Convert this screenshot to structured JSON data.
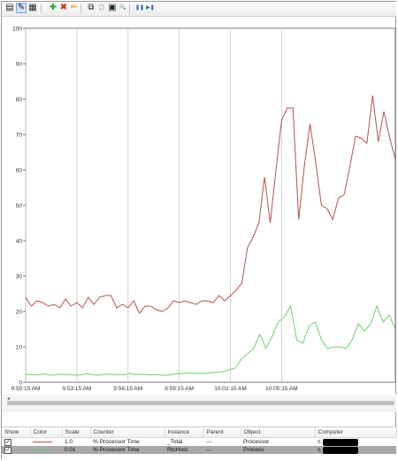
{
  "toolbar": {
    "buttons": [
      {
        "name": "view-graph-icon",
        "glyph": "▤"
      },
      {
        "name": "highlight-icon",
        "glyph": "✎",
        "pressed": true
      },
      {
        "name": "change-graph-type-icon",
        "glyph": "▦"
      },
      {
        "name": "add-counter-icon",
        "glyph": "✚",
        "color": "#2ca02c"
      },
      {
        "name": "delete-counter-icon",
        "glyph": "✖",
        "color": "#d62728"
      },
      {
        "name": "highlight-pen-icon",
        "glyph": "✏",
        "color": "#c9a400"
      },
      {
        "name": "copy-icon",
        "glyph": "⧉"
      },
      {
        "name": "paste-icon",
        "glyph": "📋"
      },
      {
        "name": "properties-icon",
        "glyph": "▣"
      },
      {
        "name": "zoom-icon",
        "glyph": "🔍"
      },
      {
        "name": "freeze-display-icon",
        "glyph": "❚❚",
        "color": "#2a62b8"
      },
      {
        "name": "update-data-icon",
        "glyph": "▶❚",
        "color": "#2a62b8"
      }
    ]
  },
  "chart_data": {
    "type": "line",
    "ylim": [
      0,
      100
    ],
    "yticks": [
      "0",
      "10",
      "20",
      "30",
      "40",
      "50",
      "60",
      "70",
      "80",
      "90",
      "100"
    ],
    "xticks": [
      {
        "label": "9:50:15 AM",
        "index": 0
      },
      {
        "label": "9:53:15 AM",
        "index": 9
      },
      {
        "label": "9:56:15 AM",
        "index": 18
      },
      {
        "label": "9:59:15 AM",
        "index": 27
      },
      {
        "label": "10:02:15 AM",
        "index": 36
      },
      {
        "label": "10:05:15 AM",
        "index": 45
      }
    ],
    "grid": "vertical",
    "series": [
      {
        "color": "#b5524f",
        "values": [
          24,
          21.5,
          23,
          22.5,
          21.5,
          22,
          21,
          23.5,
          21.5,
          22.5,
          21,
          24,
          22,
          24,
          24.5,
          24.5,
          21,
          22,
          21,
          23,
          19.5,
          21.5,
          21.5,
          20.5,
          20,
          21,
          23,
          22.5,
          23,
          22.5,
          22,
          23,
          23,
          22.5,
          24.5,
          23,
          24.5,
          26,
          28,
          38,
          41,
          45,
          58,
          45,
          60,
          74,
          77.5,
          77.5,
          46,
          61,
          73,
          62,
          50,
          49,
          46,
          52,
          53,
          61,
          69.5,
          69,
          67.5,
          81,
          68,
          76.5,
          69,
          63
        ]
      },
      {
        "color": "#6ad16a",
        "values": [
          2.3,
          2.1,
          2.1,
          2.4,
          2.0,
          2.1,
          2.3,
          2.2,
          2.0,
          2.1,
          2.4,
          2.1,
          2.0,
          2.3,
          2.2,
          2.2,
          2.1,
          2.5,
          2.1,
          2.3,
          2.1,
          2.2,
          2.0,
          2.0,
          2.3,
          2.4,
          2.6,
          2.5,
          2.5,
          2.5,
          2.7,
          2.8,
          3,
          3.5,
          4,
          6.5,
          8,
          9.5,
          13.5,
          9.5,
          13,
          17,
          18.5,
          21.5,
          12,
          11,
          16,
          17,
          12,
          9.5,
          10,
          10,
          9.5,
          12,
          16.5,
          14.5,
          16.5,
          21.5,
          17,
          19,
          15
        ]
      }
    ]
  },
  "scrollbar": {
    "left_arrow": "◂"
  },
  "legend": {
    "headers": [
      "Show",
      "Color",
      "Scale",
      "Counter",
      "Instance",
      "Parent",
      "Object",
      "Computer"
    ],
    "rows": [
      {
        "show": "✓",
        "color": "#b5524f",
        "scale": "1.0",
        "counter": "% Processor Time",
        "instance": "_Total",
        "parent": "---",
        "object": "Processor",
        "computer": "\\\\",
        "selected": false
      },
      {
        "show": "✓",
        "color": "#6ad16a",
        "scale": "0.01",
        "counter": "% Processor Time",
        "instance": "RtcHost",
        "parent": "---",
        "object": "Process",
        "computer": "\\\\",
        "selected": true
      }
    ]
  }
}
